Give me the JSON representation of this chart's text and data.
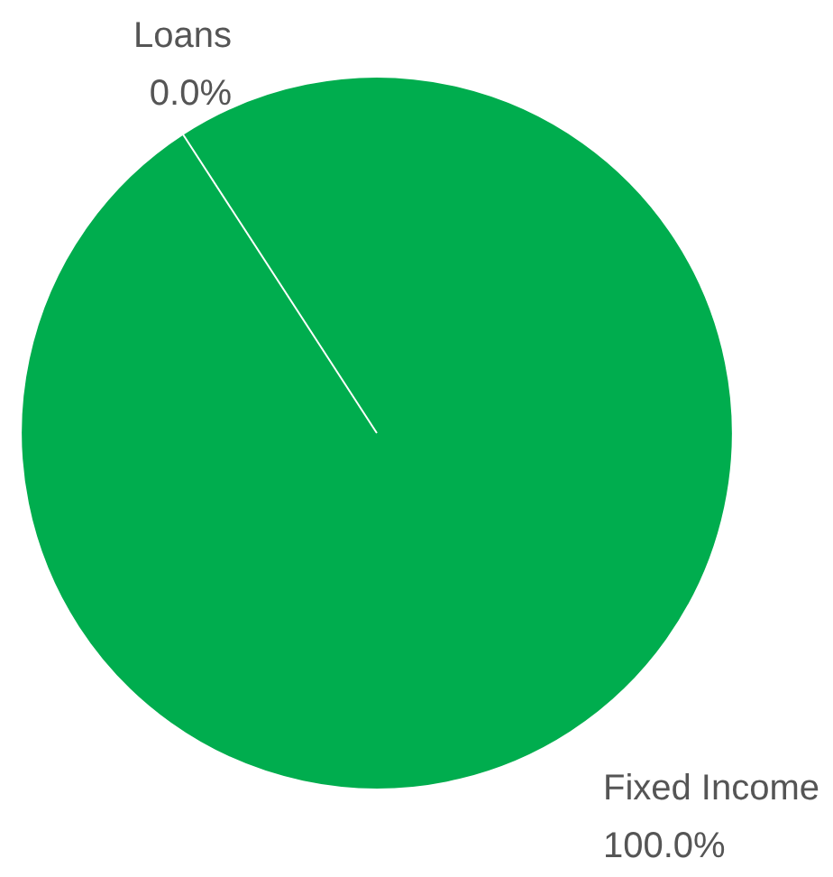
{
  "chart_data": {
    "type": "pie",
    "categories": [
      "Loans",
      "Fixed Income"
    ],
    "values": [
      0,
      100
    ],
    "colors": [
      "#00ad4e",
      "#00ad4e"
    ],
    "value_labels": [
      "0.0%",
      "100.0%"
    ]
  }
}
